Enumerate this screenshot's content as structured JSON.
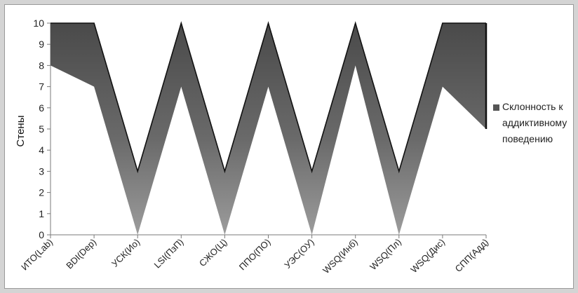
{
  "chart_data": {
    "type": "area",
    "categories": [
      "ИТО(Lab)",
      "BDI(Dep)",
      "УСК(Ио)",
      "LSI(ПзП)",
      "СЖО(Ц)",
      "ППО(ПО)",
      "УЭС(ОУ)",
      "WSQ(Инб)",
      "WSQ(Пл)",
      "WSQ(Дис)",
      "СПП(Адд)"
    ],
    "series": [
      {
        "name": "Склонность к аддиктивному поведению",
        "lower": [
          8,
          7,
          0,
          7,
          0,
          7,
          0,
          8,
          0,
          7,
          5
        ],
        "upper": [
          10,
          10,
          3,
          10,
          3,
          10,
          3,
          10,
          3,
          10,
          10
        ]
      }
    ],
    "ylabel": "Стены",
    "xlabel": "",
    "title": "",
    "ylim": [
      0,
      10
    ],
    "yticks": [
      0,
      1,
      2,
      3,
      4,
      5,
      6,
      7,
      8,
      9,
      10
    ],
    "grid": false,
    "legend_position": "right",
    "colors": {
      "fill_dark": "#5a5a5a",
      "fill_light": "#b8b8b8",
      "edge": "#111111"
    }
  },
  "legend": {
    "lines": [
      "Склонность к",
      "аддиктивному",
      "поведению"
    ]
  }
}
